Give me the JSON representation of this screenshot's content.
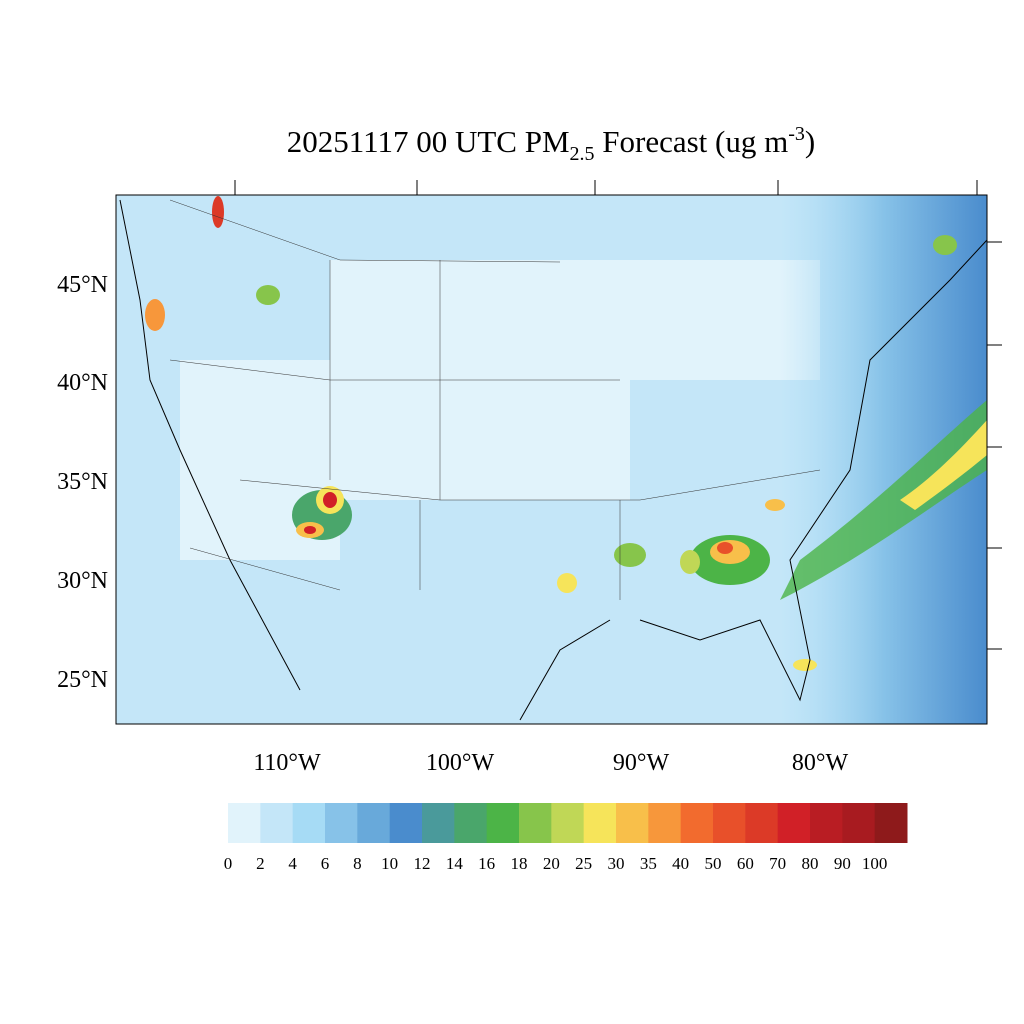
{
  "title": {
    "main": "20251117 00 UTC PM",
    "sub": "2.5",
    "middle": " Forecast (ug m",
    "sup": "-3",
    "end": ")"
  },
  "lat_labels": [
    "45°N",
    "40°N",
    "35°N",
    "30°N",
    "25°N"
  ],
  "lon_labels": [
    "110°W",
    "100°W",
    "90°W",
    "80°W"
  ],
  "colorbar": {
    "levels": [
      0,
      2,
      4,
      6,
      8,
      10,
      12,
      14,
      16,
      18,
      20,
      25,
      30,
      35,
      40,
      50,
      60,
      70,
      80,
      90,
      100
    ],
    "colors": [
      "#e1f3fb",
      "#c4e6f8",
      "#a6dbf5",
      "#87c2e8",
      "#68a9da",
      "#4a8ccd",
      "#4a9a9b",
      "#4aa66b",
      "#4cb447",
      "#87c54b",
      "#c0d756",
      "#f6e45a",
      "#f8bf4a",
      "#f7973b",
      "#f26b2e",
      "#e8502a",
      "#dc3a27",
      "#d12027",
      "#b91d23",
      "#a81b20",
      "#8e1a1b"
    ]
  }
}
